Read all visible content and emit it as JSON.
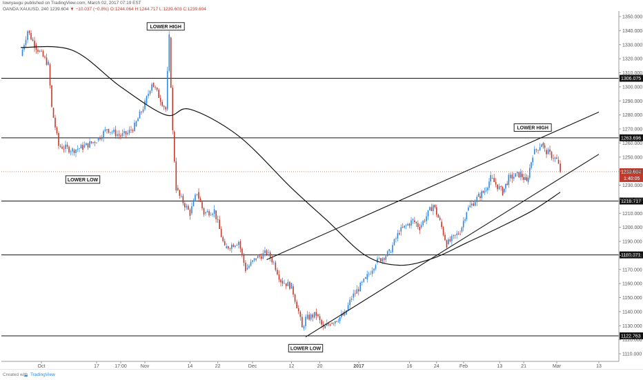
{
  "header": {
    "line1": "lowryaugu published on TradingView.com, March 02, 2017 07:19 EST",
    "symbol": "OANDA:XAUUSD, 240",
    "last": "1239.604",
    "change": "▼ −10.037 (−0.8%)",
    "ohlc": "O:1244.064 H:1244.717 L:1239.603 C:1239.604"
  },
  "footer": {
    "created_with": "Created with",
    "brand": "TradingView"
  },
  "colors": {
    "up": "#2e86de",
    "down": "#c0392b",
    "line": "#111111",
    "price_tag": "#c0392b"
  },
  "chart_data": {
    "type": "line",
    "instrument": "OANDA:XAUUSD",
    "interval": "240",
    "ylim": [
      1105,
      1355
    ],
    "y_ticks": [
      1110,
      1120,
      1130,
      1140,
      1150,
      1160,
      1170,
      1180,
      1190,
      1200,
      1210,
      1220,
      1230,
      1240,
      1250,
      1260,
      1270,
      1280,
      1290,
      1300,
      1310,
      1320,
      1330,
      1340,
      1350
    ],
    "x_ticks": [
      "Oct",
      "17",
      "17:00",
      "Nov",
      "14",
      "22",
      "Dec",
      "12",
      "20",
      "2017",
      "16",
      "24",
      "Feb",
      "13",
      "21",
      "Mar",
      "13"
    ],
    "price_series": {
      "x": [
        "Sep 26",
        "Sep 28",
        "Sep 30",
        "Oct 3",
        "Oct 4",
        "Oct 6",
        "Oct 10",
        "Oct 13",
        "Oct 17",
        "Oct 20",
        "Oct 24",
        "Oct 26",
        "Oct 28",
        "Nov 1",
        "Nov 3",
        "Nov 7",
        "Nov 8",
        "Nov 9",
        "Nov 10",
        "Nov 11",
        "Nov 14",
        "Nov 16",
        "Nov 18",
        "Nov 21",
        "Nov 24",
        "Nov 28",
        "Nov 30",
        "Dec 2",
        "Dec 5",
        "Dec 7",
        "Dec 9",
        "Dec 12",
        "Dec 14",
        "Dec 15",
        "Dec 16",
        "Dec 19",
        "Dec 21",
        "Dec 23",
        "Dec 27",
        "Dec 29",
        "Jan 3",
        "Jan 6",
        "Jan 10",
        "Jan 13",
        "Jan 17",
        "Jan 19",
        "Jan 23",
        "Jan 25",
        "Jan 27",
        "Jan 31",
        "Feb 2",
        "Feb 6",
        "Feb 8",
        "Feb 10",
        "Feb 14",
        "Feb 16",
        "Feb 20",
        "Feb 22",
        "Feb 24",
        "Feb 27",
        "Feb 28",
        "Mar 1",
        "Mar 2"
      ],
      "close": [
        1322,
        1340,
        1330,
        1316,
        1285,
        1258,
        1255,
        1257,
        1262,
        1270,
        1265,
        1267,
        1272,
        1288,
        1303,
        1284,
        1335,
        1268,
        1228,
        1222,
        1210,
        1225,
        1210,
        1212,
        1185,
        1190,
        1170,
        1178,
        1182,
        1175,
        1162,
        1158,
        1140,
        1128,
        1135,
        1138,
        1128,
        1132,
        1138,
        1150,
        1163,
        1175,
        1182,
        1197,
        1205,
        1200,
        1216,
        1204,
        1188,
        1197,
        1212,
        1222,
        1226,
        1235,
        1225,
        1235,
        1238,
        1232,
        1252,
        1260,
        1255,
        1248,
        1240
      ]
    },
    "moving_average": {
      "x": [
        "Sep 26",
        "Oct 10",
        "Oct 24",
        "Nov 7",
        "Nov 14",
        "Nov 28",
        "Dec 12",
        "Dec 22",
        "Jan 3",
        "Jan 13",
        "Jan 23",
        "Feb 2",
        "Feb 13",
        "Feb 24",
        "Mar 2"
      ],
      "values": [
        1328,
        1326,
        1300,
        1280,
        1284,
        1265,
        1228,
        1205,
        1180,
        1173,
        1178,
        1189,
        1200,
        1212,
        1225
      ]
    },
    "horizontal_levels": [
      "1306.075",
      "1263.696",
      "1218.717",
      "1180.371",
      "1122.763"
    ],
    "trendlines": [
      {
        "from": [
          "Dec 5",
          1177
        ],
        "to": [
          "Mar 13",
          1282
        ]
      },
      {
        "from": [
          "Dec 16",
          1122
        ],
        "to": [
          "Mar 13",
          1252
        ]
      }
    ],
    "last_price": "1239.604",
    "countdown": "1:40:05",
    "annotations": [
      {
        "text": "LOWER HIGH",
        "x": "Nov 7",
        "y": 1343
      },
      {
        "text": "LOWER LOW",
        "x": "Oct 13",
        "y": 1234
      },
      {
        "text": "LOWER HIGH",
        "x": "Feb 24",
        "y": 1271
      },
      {
        "text": "LOWER LOW",
        "x": "Dec 16",
        "y": 1114
      }
    ]
  }
}
